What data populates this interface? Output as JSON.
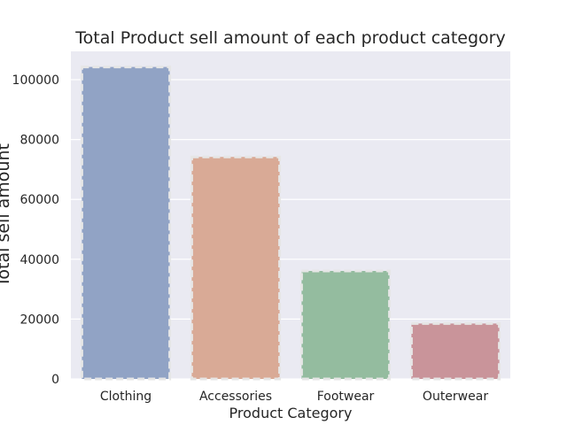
{
  "chart_data": {
    "type": "bar",
    "title": "Total Product sell amount of each product category",
    "xlabel": "Product Category",
    "ylabel": "Total sell amount",
    "categories": [
      "Clothing",
      "Accessories",
      "Footwear",
      "Outerwear"
    ],
    "values": [
      104264,
      74200,
      36093,
      18524
    ],
    "ylim": [
      0,
      109477
    ],
    "yticks": [
      0,
      20000,
      40000,
      60000,
      80000,
      100000
    ],
    "grid": true,
    "colors": [
      "#91a3c5",
      "#d9aa96",
      "#94bc9f",
      "#c9949a"
    ],
    "plot_background": "#eaeaf2",
    "bar_edge_style": "dashed",
    "bar_edge_color": "#e6e6e6"
  }
}
